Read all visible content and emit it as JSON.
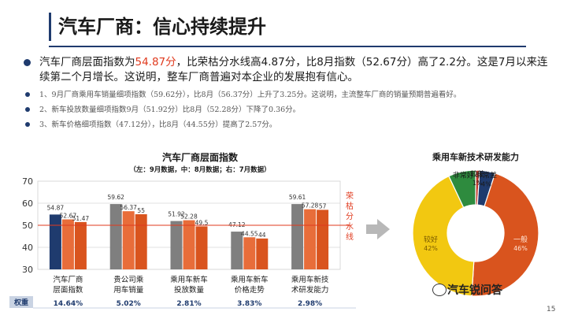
{
  "slide": {
    "title": "汽车厂商：信心持续提升",
    "page_number": "15"
  },
  "bullets": {
    "main_prefix": "汽车厂商层面指数为",
    "main_highlight": "54.87分",
    "main_suffix": "，比荣枯分水线高4.87分，比8月指数（52.67分）高了2.2分。这是7月以来连续第二个月增长。这说明，整车厂商普遍对本企业的发展抱有信心。",
    "sub": [
      "1、9月厂商乘用车销量细项指数（59.62分），比8月（56.37分）上升了3.25分。这说明，主流整车厂商的销量预期普遍看好。",
      "2、新车投放数量细项指数9月（51.92分）比8月（52.28分）下降了0.36分。",
      "3、新车价格细项指数（47.12分），比8月（44.55分）提高了2.57分。"
    ]
  },
  "watermark": {
    "text": "汽车锐问答",
    "icon": "wechat-icon"
  },
  "chart_data": [
    {
      "type": "bar",
      "title": "汽车厂商层面指数",
      "subtitle": "（左：9月数据，中：8月数据；右：7月数据）",
      "categories": [
        "汽车厂商层面指数",
        "贵公司乘用车销量",
        "乘用车新车投放数量",
        "乘用车新车价格走势",
        "乘用车新技术研发能力"
      ],
      "category_lines": [
        [
          "汽车厂商",
          "层面指数"
        ],
        [
          "贵公司乘",
          "用车销量"
        ],
        [
          "乘用车新车",
          "投放数量"
        ],
        [
          "乘用车新车",
          "价格走势"
        ],
        [
          "乘用车新技",
          "术研发能力"
        ]
      ],
      "series": [
        {
          "values": [
            54.87,
            59.62,
            51.92,
            47.12,
            59.61
          ]
        },
        {
          "values": [
            52.67,
            56.37,
            52.28,
            44.55,
            57.28
          ]
        },
        {
          "values": [
            51.47,
            55,
            49.5,
            44,
            57
          ]
        }
      ],
      "value_labels": [
        [
          "54.87",
          "59.62",
          "51.92",
          "47.12",
          "59.61"
        ],
        [
          "52.67",
          "56.37",
          "52.28",
          "44.55",
          "57.28"
        ],
        [
          "51.47",
          "55",
          "49.5",
          "44",
          "57"
        ]
      ],
      "colors": [
        "#1f3b6e",
        "#e86d3a",
        "#d9541e",
        "#7f7f7f"
      ],
      "y_ticks": [
        "70",
        "60",
        "50",
        "40",
        "30"
      ],
      "ylim": [
        30,
        70
      ],
      "reference_line": {
        "value": 50,
        "label": "荣枯分水线",
        "color": "#e03a1e"
      },
      "weights_label": "权重",
      "weights": [
        "14.64%",
        "5.02%",
        "2.81%",
        "3.83%",
        "2.98%"
      ]
    },
    {
      "type": "pie",
      "title": "乘用车新技术研发能力",
      "labels": [
        "较差",
        "非常差",
        "一般",
        "较好",
        "非常好"
      ],
      "values": [
        1,
        4,
        46,
        42,
        7
      ],
      "value_labels": [
        "1%",
        "4%",
        "46%",
        "42%",
        ""
      ],
      "colors": [
        "#c0392b",
        "#1f3b6e",
        "#d9541e",
        "#f2c811",
        "#2e8b3e"
      ]
    }
  ]
}
